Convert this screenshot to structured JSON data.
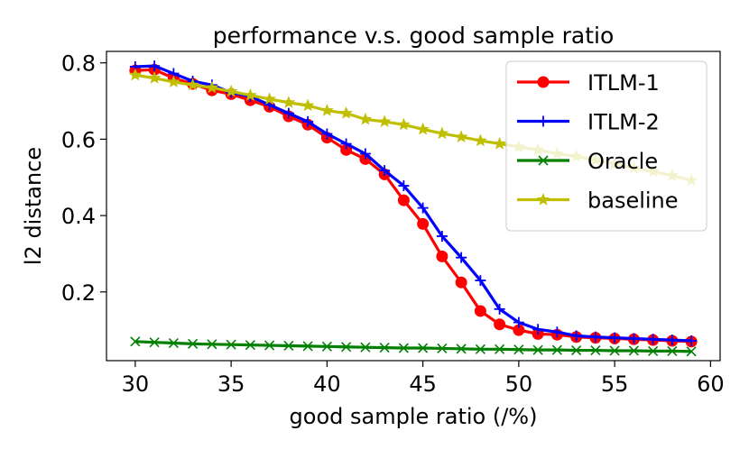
{
  "chart_data": {
    "type": "line",
    "title": "performance v.s. good sample ratio",
    "xlabel": "good sample ratio (/%)",
    "ylabel": "l2 distance",
    "xlim": [
      28.5,
      60.5
    ],
    "ylim": [
      0.02,
      0.83
    ],
    "xticks": [
      30,
      35,
      40,
      45,
      50,
      55,
      60
    ],
    "yticks": [
      0.2,
      0.4,
      0.6,
      0.8
    ],
    "xtick_labels": [
      "30",
      "35",
      "40",
      "45",
      "50",
      "55",
      "60"
    ],
    "ytick_labels": [
      "0.2",
      "0.4",
      "0.6",
      "0.8"
    ],
    "legend_position": "top-right",
    "x": [
      30,
      31,
      32,
      33,
      34,
      35,
      36,
      37,
      38,
      39,
      40,
      41,
      42,
      43,
      44,
      45,
      46,
      47,
      48,
      49,
      50,
      51,
      52,
      53,
      54,
      55,
      56,
      57,
      58,
      59
    ],
    "series": [
      {
        "name": "ITLM-1",
        "color": "#ff0000",
        "marker": "circle",
        "values": [
          0.78,
          0.782,
          0.76,
          0.745,
          0.728,
          0.718,
          0.702,
          0.685,
          0.66,
          0.638,
          0.604,
          0.572,
          0.548,
          0.508,
          0.44,
          0.378,
          0.293,
          0.225,
          0.15,
          0.115,
          0.1,
          0.09,
          0.088,
          0.082,
          0.08,
          0.078,
          0.076,
          0.074,
          0.072,
          0.07
        ]
      },
      {
        "name": "ITLM-2",
        "color": "#0000ff",
        "marker": "plus",
        "values": [
          0.79,
          0.792,
          0.772,
          0.752,
          0.742,
          0.722,
          0.712,
          0.69,
          0.668,
          0.646,
          0.614,
          0.588,
          0.562,
          0.518,
          0.478,
          0.42,
          0.346,
          0.29,
          0.23,
          0.155,
          0.12,
          0.102,
          0.095,
          0.085,
          0.082,
          0.08,
          0.078,
          0.076,
          0.074,
          0.072
        ]
      },
      {
        "name": "Oracle",
        "color": "#008000",
        "marker": "x",
        "values": [
          0.07,
          0.068,
          0.066,
          0.064,
          0.063,
          0.062,
          0.061,
          0.06,
          0.059,
          0.058,
          0.057,
          0.056,
          0.055,
          0.054,
          0.053,
          0.053,
          0.052,
          0.051,
          0.05,
          0.05,
          0.049,
          0.048,
          0.048,
          0.047,
          0.047,
          0.046,
          0.046,
          0.045,
          0.045,
          0.044
        ]
      },
      {
        "name": "baseline",
        "color": "#bfbf00",
        "marker": "star",
        "values": [
          0.768,
          0.76,
          0.75,
          0.742,
          0.735,
          0.725,
          0.715,
          0.705,
          0.696,
          0.688,
          0.675,
          0.668,
          0.652,
          0.646,
          0.638,
          0.626,
          0.615,
          0.606,
          0.596,
          0.588,
          0.58,
          0.572,
          0.562,
          0.555,
          0.545,
          0.535,
          0.525,
          0.515,
          0.505,
          0.492
        ]
      }
    ]
  }
}
